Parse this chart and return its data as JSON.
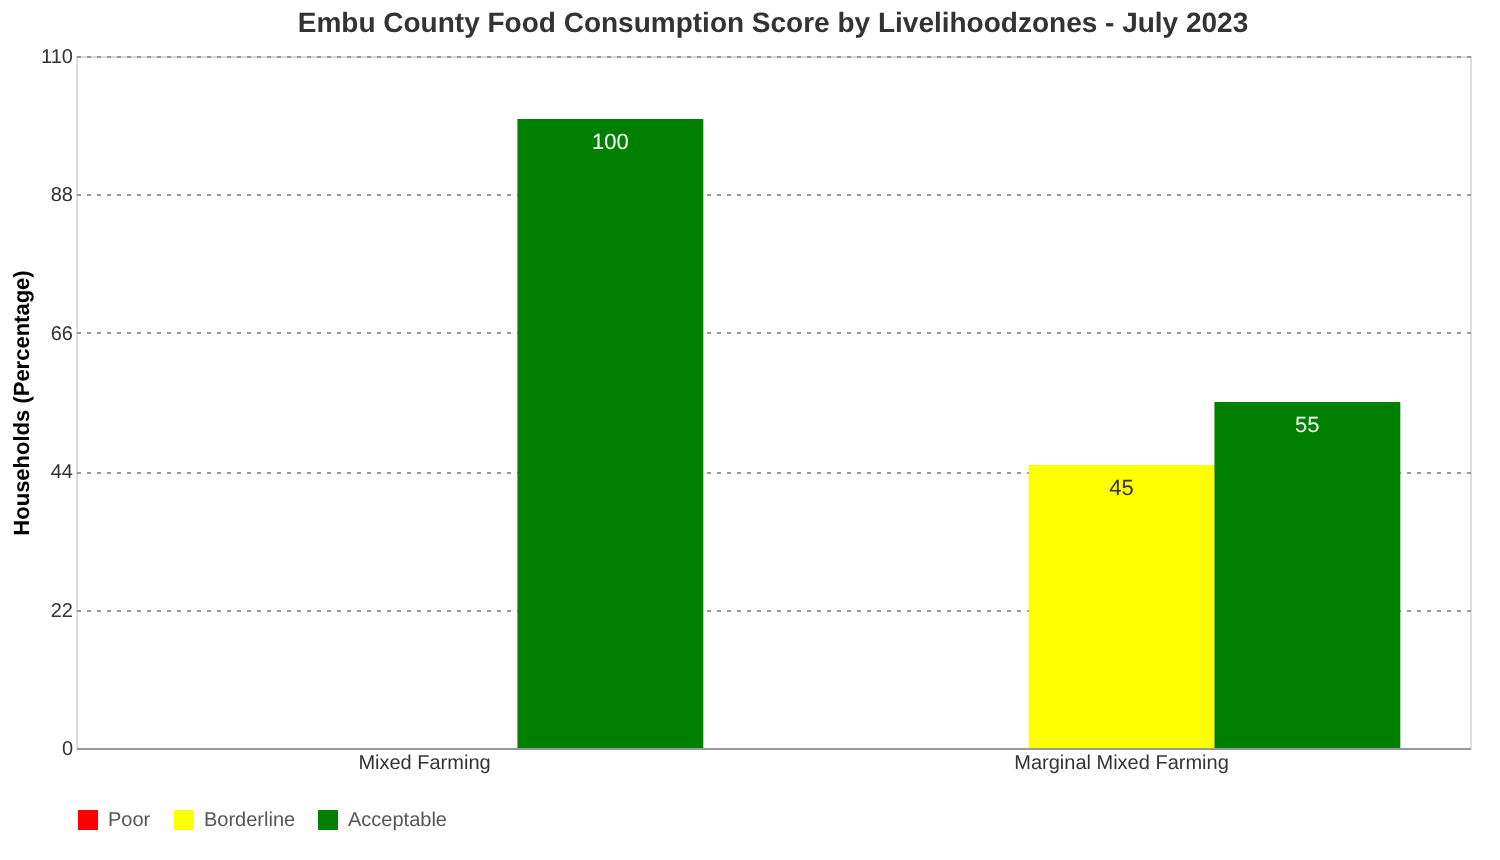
{
  "chart_data": {
    "type": "bar",
    "title": "Embu County Food Consumption Score by Livelihoodzones - July 2023",
    "ylabel": "Households (Percentage)",
    "categories": [
      "Mixed Farming",
      "Marginal Mixed Farming"
    ],
    "series": [
      {
        "name": "Poor",
        "color": "#ff0000",
        "values": [
          null,
          null
        ]
      },
      {
        "name": "Borderline",
        "color": "#ffff00",
        "values": [
          null,
          45
        ]
      },
      {
        "name": "Acceptable",
        "color": "#008000",
        "values": [
          100,
          55
        ]
      }
    ],
    "ylim": [
      0,
      110
    ],
    "yticks": [
      0,
      22,
      44,
      66,
      88,
      110
    ],
    "grid": "y",
    "legend": "bottom",
    "data_labels": true
  }
}
